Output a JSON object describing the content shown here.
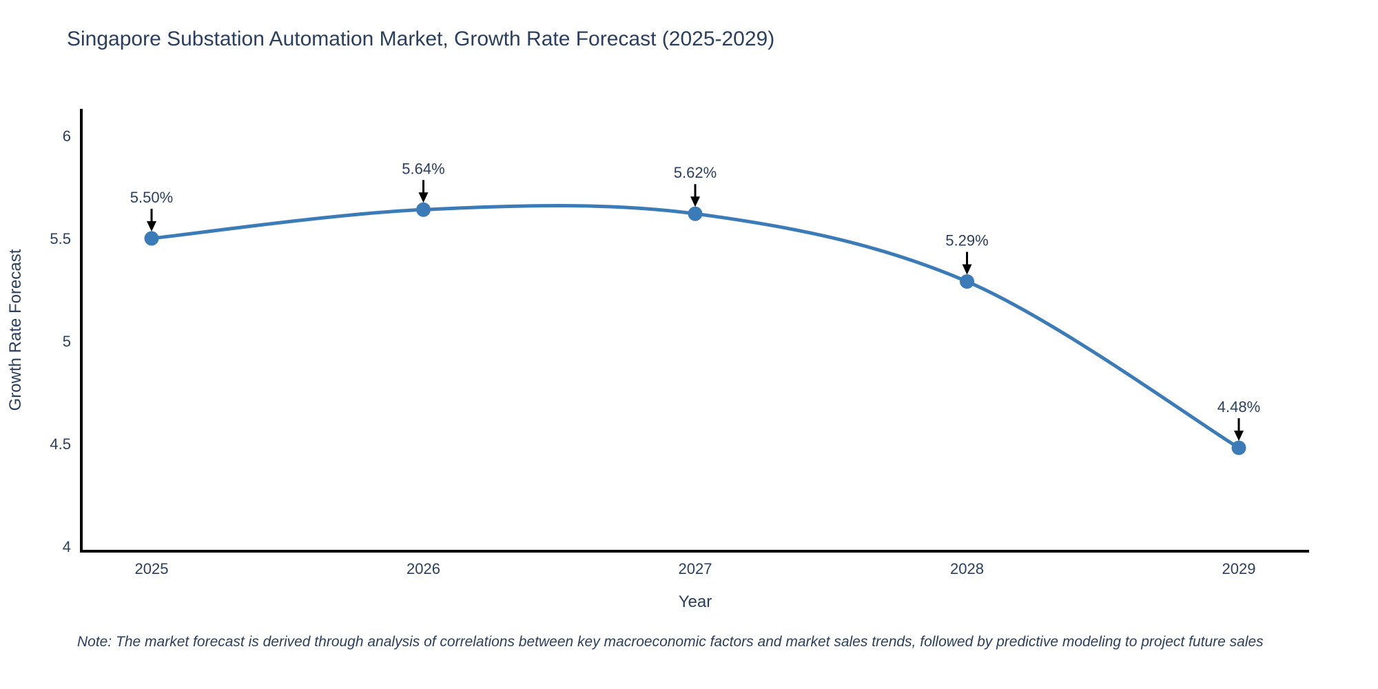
{
  "title": "Singapore Substation Automation Market, Growth Rate Forecast (2025-2029)",
  "note": "Note: The market forecast is derived through analysis of correlations between key macroeconomic factors and market sales trends, followed by predictive modeling to project future sales",
  "chart_data": {
    "type": "line",
    "title": "Singapore Substation Automation Market, Growth Rate Forecast (2025-2029)",
    "categories": [
      "2025",
      "2026",
      "2027",
      "2028",
      "2029"
    ],
    "values": [
      5.5,
      5.64,
      5.62,
      5.29,
      4.48
    ],
    "point_labels": [
      "5.50%",
      "5.64%",
      "5.62%",
      "5.29%",
      "4.48%"
    ],
    "xlabel": "Year",
    "ylabel": "Growth Rate Forecast",
    "ylim": [
      3.98,
      6.13
    ],
    "yticks": [
      4,
      4.5,
      5,
      5.5,
      6
    ],
    "grid": false,
    "legend_position": "none",
    "line_shape": "spline",
    "colors": {
      "line": "#3b7cb8",
      "marker": "#3b7cb8",
      "axis": "#000000",
      "arrow": "#000000",
      "text": "#2a3f5f"
    }
  }
}
